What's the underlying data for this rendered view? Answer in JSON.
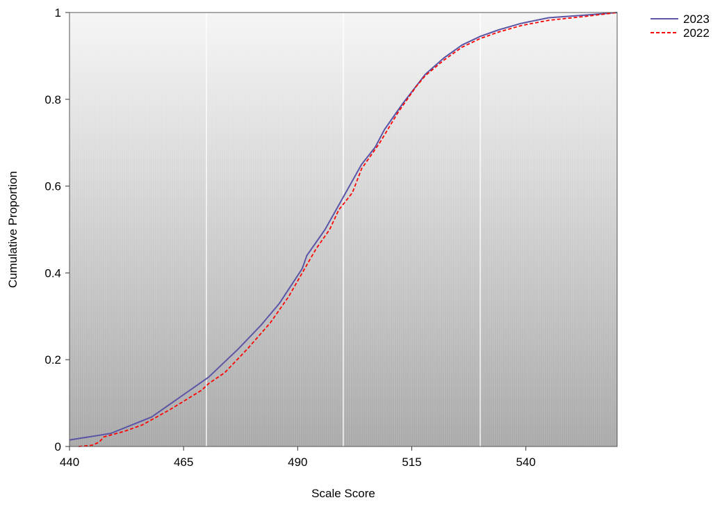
{
  "chart_data": {
    "type": "line",
    "title": "",
    "xlabel": "Scale Score",
    "ylabel": "Cumulative Proportion",
    "xlim": [
      440,
      560
    ],
    "ylim": [
      0,
      1
    ],
    "x_ticks": [
      440,
      465,
      490,
      515,
      540
    ],
    "y_ticks": [
      0,
      0.2,
      0.4,
      0.6,
      0.8,
      1
    ],
    "y_tick_labels": [
      "0",
      "0.2",
      "0.4",
      "0.6",
      "0.8",
      "1"
    ],
    "x_tick_labels": [
      "440",
      "465",
      "490",
      "515",
      "540"
    ],
    "vertical_reference_lines": [
      470,
      500,
      530
    ],
    "grid": false,
    "legend_position": "top-right",
    "series": [
      {
        "name": "2023",
        "color": "#5b55a6",
        "style": "solid",
        "points": [
          [
            440,
            0.015
          ],
          [
            449,
            0.03
          ],
          [
            458,
            0.068
          ],
          [
            470.5,
            0.16
          ],
          [
            477,
            0.225
          ],
          [
            482,
            0.28
          ],
          [
            486,
            0.33
          ],
          [
            491,
            0.41
          ],
          [
            492,
            0.44
          ],
          [
            496,
            0.5
          ],
          [
            500,
            0.575
          ],
          [
            504,
            0.65
          ],
          [
            507,
            0.69
          ],
          [
            509,
            0.73
          ],
          [
            513,
            0.79
          ],
          [
            518,
            0.858
          ],
          [
            522,
            0.895
          ],
          [
            526,
            0.925
          ],
          [
            530,
            0.945
          ],
          [
            534,
            0.96
          ],
          [
            539,
            0.975
          ],
          [
            545,
            0.988
          ],
          [
            553,
            0.994
          ],
          [
            560,
            1.0
          ]
        ]
      },
      {
        "name": "2022",
        "color": "#ff0000",
        "style": "dashed",
        "points": [
          [
            442,
            0.0
          ],
          [
            445,
            0.003
          ],
          [
            446.5,
            0.01
          ],
          [
            447.5,
            0.022
          ],
          [
            452,
            0.035
          ],
          [
            456,
            0.05
          ],
          [
            462,
            0.085
          ],
          [
            469,
            0.13
          ],
          [
            470.5,
            0.145
          ],
          [
            474,
            0.17
          ],
          [
            479,
            0.225
          ],
          [
            484,
            0.285
          ],
          [
            488,
            0.345
          ],
          [
            491,
            0.4
          ],
          [
            494,
            0.455
          ],
          [
            497,
            0.5
          ],
          [
            499,
            0.545
          ],
          [
            502,
            0.585
          ],
          [
            504,
            0.64
          ],
          [
            508,
            0.7
          ],
          [
            512,
            0.77
          ],
          [
            516,
            0.83
          ],
          [
            518,
            0.855
          ],
          [
            522,
            0.89
          ],
          [
            526,
            0.92
          ],
          [
            530,
            0.94
          ],
          [
            534,
            0.955
          ],
          [
            539,
            0.97
          ],
          [
            545,
            0.982
          ],
          [
            553,
            0.991
          ],
          [
            560,
            1.0
          ]
        ]
      }
    ]
  }
}
